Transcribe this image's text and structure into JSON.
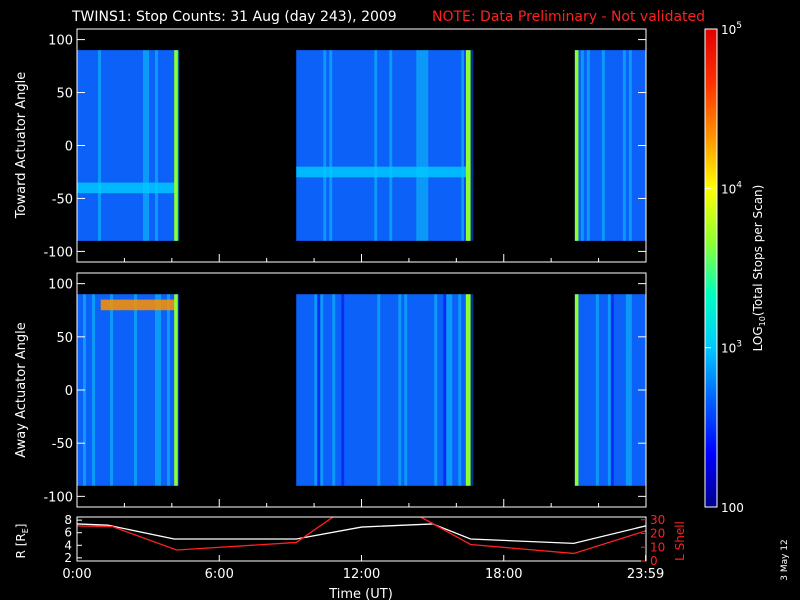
{
  "title": {
    "main": "TWINS1: Stop Counts: 31 Aug (day 243), 2009",
    "note": "NOTE: Data Preliminary - Not validated",
    "note_color": "#ff2020"
  },
  "datestamp": "3 May 12",
  "chart_data": [
    {
      "type": "heatmap",
      "name": "toward",
      "ylabel": "Toward Actuator Angle",
      "xlabel": "",
      "xlim": [
        0,
        24
      ],
      "ylim": [
        -110,
        110
      ],
      "yticks": [
        "100",
        "50",
        "0",
        "-50",
        "-100"
      ],
      "ytick_values": [
        100,
        50,
        0,
        -50,
        -100
      ],
      "angle_range": [
        -90,
        90
      ],
      "data_intervals_hours": [
        [
          0.0,
          4.25
        ],
        [
          9.25,
          16.6
        ],
        [
          21.0,
          24.0
        ]
      ],
      "features": [
        {
          "desc": "enhanced band",
          "angle_range": [
            -45,
            -35
          ],
          "hours": [
            0,
            4.25
          ]
        },
        {
          "desc": "enhanced band",
          "angle_range": [
            -30,
            -20
          ],
          "hours": [
            9.25,
            16.6
          ]
        },
        {
          "desc": "bright edge",
          "hours": [
            4.1,
            4.25
          ]
        },
        {
          "desc": "bright edge",
          "hours": [
            16.4,
            16.6
          ]
        },
        {
          "desc": "bright edge",
          "hours": [
            21.0,
            21.15
          ]
        }
      ]
    },
    {
      "type": "heatmap",
      "name": "away",
      "ylabel": "Away Actuator Angle",
      "xlabel": "",
      "xlim": [
        0,
        24
      ],
      "ylim": [
        -110,
        110
      ],
      "yticks": [
        "100",
        "50",
        "0",
        "-50",
        "-100"
      ],
      "ytick_values": [
        100,
        50,
        0,
        -50,
        -100
      ],
      "angle_range": [
        -90,
        90
      ],
      "data_intervals_hours": [
        [
          0.0,
          4.25
        ],
        [
          9.25,
          16.6
        ],
        [
          21.0,
          24.0
        ]
      ],
      "features": [
        {
          "desc": "intense band",
          "angle_range": [
            75,
            85
          ],
          "hours": [
            1.0,
            4.2
          ]
        },
        {
          "desc": "bright edge",
          "hours": [
            4.1,
            4.25
          ]
        },
        {
          "desc": "bright edge",
          "hours": [
            16.4,
            16.6
          ]
        },
        {
          "desc": "bright edge",
          "hours": [
            21.0,
            21.15
          ]
        }
      ]
    },
    {
      "type": "line",
      "name": "orbit",
      "xlabel": "Time (UT)",
      "ylabel": "R [R",
      "ylabel_sub": "E",
      "ylabel_close": "]",
      "y2label": "L Shell",
      "y2label_color": "#ff2020",
      "xlim": [
        0,
        24
      ],
      "ylim": [
        1.5,
        8.5
      ],
      "y2lim": [
        0,
        32
      ],
      "xticks": [
        "0:00",
        "6:00",
        "12:00",
        "18:00",
        "23:59"
      ],
      "xtick_values": [
        0,
        6,
        12,
        18,
        23.983
      ],
      "yticks": [
        "8",
        "6",
        "4",
        "2"
      ],
      "ytick_values": [
        8,
        6,
        4,
        2
      ],
      "y2ticks": [
        "30",
        "20",
        "10",
        "0"
      ],
      "y2tick_values": [
        30,
        20,
        10,
        0
      ],
      "series": [
        {
          "name": "R",
          "color": "#ffffff",
          "x": [
            0,
            1.3,
            4.1,
            9.25,
            12.0,
            15.0,
            16.6,
            20.95,
            24.0
          ],
          "y": [
            7.4,
            7.2,
            5.0,
            5.0,
            6.9,
            7.4,
            5.0,
            4.3,
            7.1
          ]
        },
        {
          "name": "L Shell",
          "color": "#ff2020",
          "x": [
            0,
            1.5,
            4.2,
            9.25,
            10.8,
            14.5,
            16.6,
            20.95,
            24.0
          ],
          "y": [
            25.5,
            25.0,
            8.0,
            13.5,
            32.0,
            32.0,
            12.0,
            5.5,
            22.0
          ]
        }
      ]
    }
  ],
  "colorbar": {
    "label": "LOG",
    "label_sub": "10",
    "label_rest": "(Total Stops per Scan)",
    "range": [
      100,
      100000
    ],
    "ticks": [
      {
        "value": 100000,
        "base": "10",
        "exp": "5"
      },
      {
        "value": 10000,
        "base": "10",
        "exp": "4"
      },
      {
        "value": 1000,
        "base": "10",
        "exp": "3"
      },
      {
        "value": 100,
        "base": "100",
        "exp": ""
      }
    ],
    "colors": [
      "#00008c",
      "#0000ff",
      "#0060ff",
      "#00c8ff",
      "#00ffc0",
      "#90ff30",
      "#ffff00",
      "#ff9000",
      "#ff3000",
      "#e00000"
    ]
  }
}
